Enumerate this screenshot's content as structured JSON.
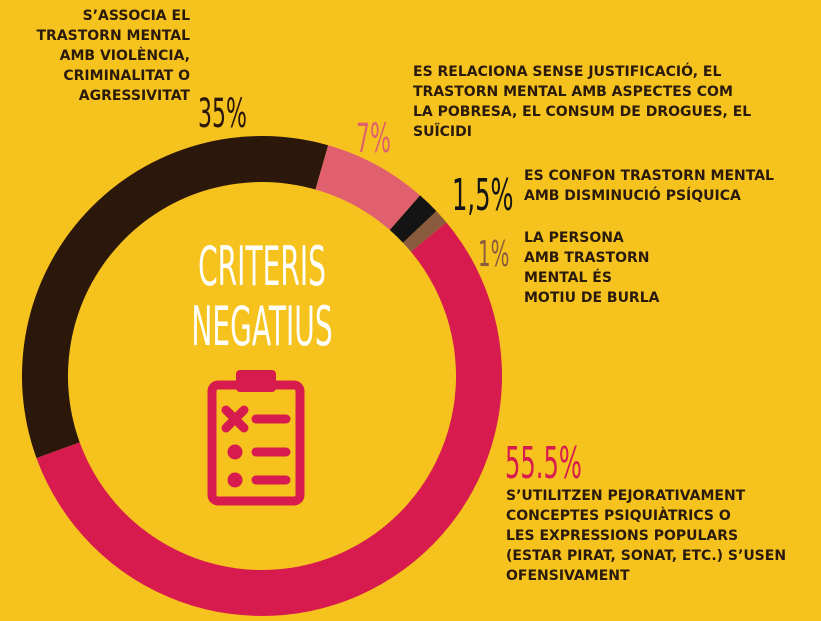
{
  "chart_data": {
    "type": "pie",
    "donut": true,
    "title_lines": [
      "CRITERIS",
      "NEGATIUS"
    ],
    "categories": [
      "S’ASSOCIA EL\nTRASTORN MENTAL\nAMB VIOLÈNCIA,\nCRIMINALITAT O\nAGRESSIVITAT",
      "ES RELACIONA SENSE JUSTIFICACIÓ, EL\nTRASTORN MENTAL AMB ASPECTES COM\nLA POBRESA, EL CONSUM DE DROGUES, EL\nSUÏCIDI",
      "ES CONFON TRASTORN MENTAL\nAMB DISMINUCIÓ PSÍQUICA",
      "LA  PERSONA\nAMB TRASTORN\nMENTAL ÉS\nMOTIU DE BURLA",
      "S’UTILITZEN PEJORATIVAMENT\nCONCEPTES PSIQUIÀTRICS O\nLES EXPRESSIONS POPULARS\n(ESTAR PIRAT, SONAT, ETC.) S’USEN\nOFENSIVAMENT"
    ],
    "values": [
      35,
      7,
      1.5,
      1,
      55.5
    ],
    "value_labels": [
      "35%",
      "7%",
      "1,5%",
      "1%",
      "55.5%"
    ],
    "colors": [
      "#2c170b",
      "#e0606e",
      "#141414",
      "#8a5b3d",
      "#d81b4f"
    ]
  }
}
